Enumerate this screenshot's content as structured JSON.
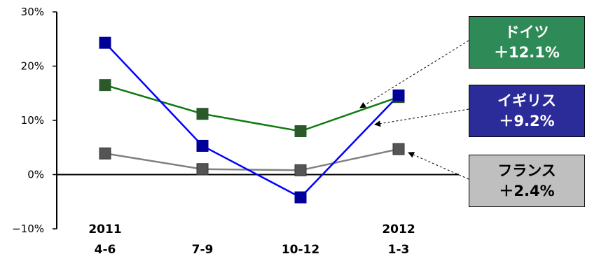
{
  "chart_data": {
    "type": "line",
    "categories": [
      [
        "2011",
        "4-6"
      ],
      [
        "",
        "7-9"
      ],
      [
        "",
        "10-12"
      ],
      [
        "2012",
        "1-3"
      ]
    ],
    "ylim": [
      -10,
      30
    ],
    "yticks": [
      30,
      20,
      10,
      0,
      -10
    ],
    "ytick_labels": [
      "30%",
      "20%",
      "10%",
      "0%",
      "−10%"
    ],
    "series": [
      {
        "name": "ドイツ",
        "values": [
          16.5,
          11.2,
          8.0,
          14.3
        ],
        "color": "#0f7a0f",
        "marker_fill": "#2a5a2a",
        "change": "＋12.1%",
        "box_fill": "#2e8b57",
        "text_color": "#ffffff"
      },
      {
        "name": "イギリス",
        "values": [
          24.3,
          5.3,
          -4.2,
          14.6
        ],
        "color": "#0000ff",
        "marker_fill": "#000099",
        "change": "＋9.2%",
        "box_fill": "#2b2b99",
        "text_color": "#ffffff"
      },
      {
        "name": "フランス",
        "values": [
          3.9,
          1.0,
          0.8,
          4.7
        ],
        "color": "#808080",
        "marker_fill": "#555555",
        "change": "＋2.4%",
        "box_fill": "#bfbfbf",
        "text_color": "#000000"
      }
    ],
    "legend": "right",
    "grid": false
  }
}
